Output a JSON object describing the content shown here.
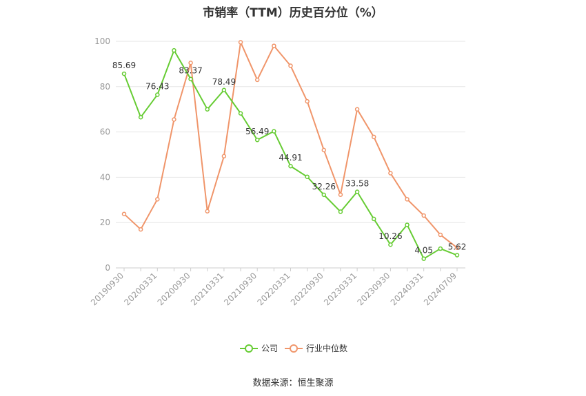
{
  "chart_data": {
    "type": "line",
    "title": "市销率（TTM）历史百分位（%）",
    "xlabel": "",
    "ylabel": "",
    "ylim": [
      0,
      100
    ],
    "yticks": [
      0,
      20,
      40,
      60,
      80,
      100
    ],
    "grid": true,
    "legend_position": "bottom",
    "x": [
      "20190930",
      "20191231",
      "20200331",
      "20200630",
      "20200930",
      "20201231",
      "20210331",
      "20210630",
      "20210930",
      "20211231",
      "20220331",
      "20220630",
      "20220930",
      "20221231",
      "20230331",
      "20230630",
      "20230930",
      "20231231",
      "20240331",
      "20240630",
      "20240709"
    ],
    "x_tick_labels": [
      "20190930",
      "20200331",
      "20200930",
      "20210331",
      "20210930",
      "20220331",
      "20220930",
      "20230331",
      "20230930",
      "20240331",
      "20240709"
    ],
    "series": [
      {
        "name": "公司",
        "color": "#66cc33",
        "values": [
          85.69,
          66.5,
          76.43,
          96,
          83.37,
          70,
          78.49,
          68.2,
          56.49,
          60.3,
          44.91,
          40.2,
          32.26,
          24.8,
          33.58,
          21.6,
          10.26,
          19,
          4.05,
          8.5,
          5.62
        ],
        "labels": {
          "0": "85.69",
          "2": "76.43",
          "4": "83.37",
          "6": "78.49",
          "8": "56.49",
          "10": "44.91",
          "12": "32.26",
          "14": "33.58",
          "16": "10.26",
          "18": "4.05",
          "20": "5.62"
        }
      },
      {
        "name": "行业中位数",
        "color": "#f0956a",
        "values": [
          23.8,
          17,
          30.3,
          65.5,
          90.5,
          25,
          49.3,
          99.6,
          83,
          98,
          89.2,
          73.5,
          52,
          32.3,
          70,
          57.8,
          41.8,
          30.3,
          23.1,
          14.6,
          8.9
        ]
      }
    ]
  },
  "source_text": "数据来源：恒生聚源"
}
